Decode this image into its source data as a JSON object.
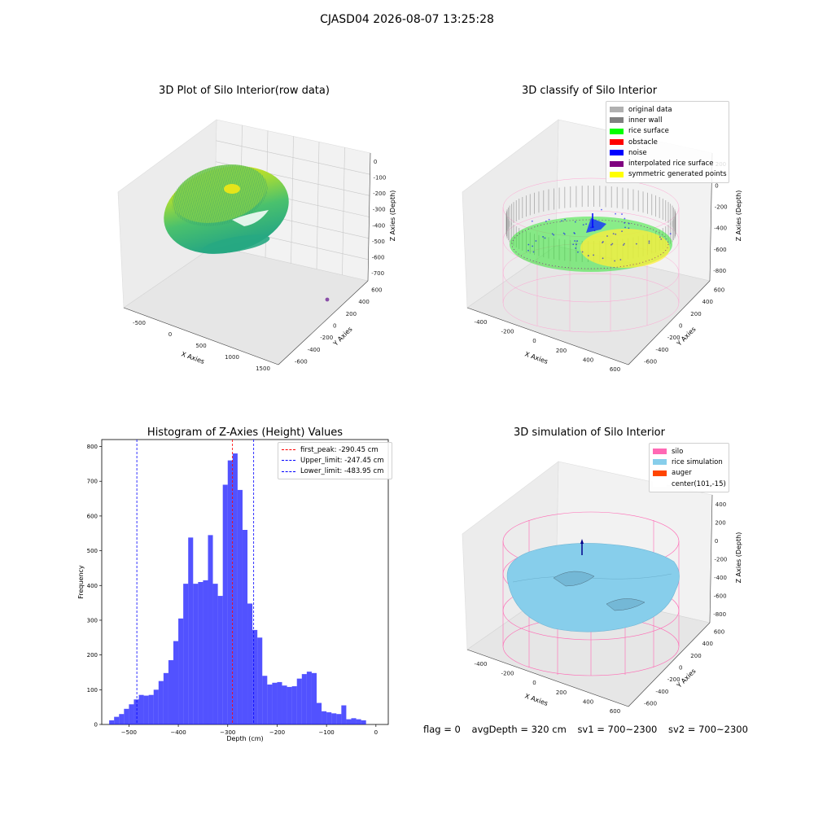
{
  "figure": {
    "suptitle": "CJASD04 2026-08-07 13:25:28"
  },
  "panels": {
    "raw": {
      "title": "3D Plot of Silo Interior(row data)",
      "xlabel": "X Axies",
      "ylabel": "Y Axies",
      "zlabel": "Z Axies (Depth)",
      "xticks": [
        "-500",
        "0",
        "500",
        "1000",
        "1500"
      ],
      "yticks": [
        "600",
        "400",
        "200",
        "0",
        "-200",
        "-400",
        "-600"
      ],
      "zticks": [
        "0",
        "-100",
        "-200",
        "-300",
        "-400",
        "-500",
        "-600",
        "-700"
      ]
    },
    "classify": {
      "title": "3D classify of Silo Interior",
      "xlabel": "X Axies",
      "ylabel": "Y Axies",
      "zlabel": "Z Axies (Depth)",
      "xticks": [
        "-400",
        "-200",
        "0",
        "200",
        "400",
        "600"
      ],
      "yticks": [
        "600",
        "400",
        "200",
        "0",
        "-200",
        "-400",
        "-600"
      ],
      "zticks": [
        "200",
        "0",
        "-200",
        "-400",
        "-600",
        "-800"
      ],
      "legend": [
        {
          "label": "original data",
          "color": "#b0b0b0"
        },
        {
          "label": "inner wall",
          "color": "#808080"
        },
        {
          "label": "rice surface",
          "color": "#00ff00"
        },
        {
          "label": "obstacle",
          "color": "#ff0000"
        },
        {
          "label": "noise",
          "color": "#0000ff"
        },
        {
          "label": "interpolated rice surface",
          "color": "#800080"
        },
        {
          "label": "symmetric generated points",
          "color": "#ffff00"
        }
      ]
    },
    "simulation": {
      "title": "3D simulation of Silo Interior",
      "xlabel": "X Axies",
      "ylabel": "Y Axies",
      "zlabel": "Z Axies (Depth)",
      "xticks": [
        "-400",
        "-200",
        "0",
        "200",
        "400",
        "600"
      ],
      "yticks": [
        "600",
        "400",
        "200",
        "0",
        "-200",
        "-400",
        "-600"
      ],
      "zticks": [
        "400",
        "200",
        "0",
        "-200",
        "-400",
        "-600",
        "-800"
      ],
      "legend": [
        {
          "label": "silo",
          "color": "#ff69b4"
        },
        {
          "label": "rice simulation",
          "color": "#87ceeb"
        },
        {
          "label": "auger",
          "color": "#ff4500"
        },
        {
          "label": "center(101,-15)",
          "color": "#ffffff"
        }
      ]
    }
  },
  "footer": {
    "flag": "flag = 0",
    "avg_depth": "avgDepth = 320 cm",
    "sv1": "sv1 = 700~2300",
    "sv2": "sv2 = 700~2300"
  },
  "chart_data": [
    {
      "type": "scatter",
      "title": "3D Plot of Silo Interior(row data)",
      "xlabel": "X Axies",
      "ylabel": "Y Axies",
      "zlabel": "Z Axies (Depth)",
      "xlim": [
        -650,
        1550
      ],
      "ylim": [
        -650,
        650
      ],
      "zlim": [
        -720,
        20
      ]
    },
    {
      "type": "scatter",
      "title": "3D classify of Silo Interior",
      "xlabel": "X Axies",
      "ylabel": "Y Axies",
      "zlabel": "Z Axies (Depth)",
      "series": [
        {
          "name": "original data"
        },
        {
          "name": "inner wall"
        },
        {
          "name": "rice surface"
        },
        {
          "name": "obstacle"
        },
        {
          "name": "noise"
        },
        {
          "name": "interpolated rice surface"
        },
        {
          "name": "symmetric generated points"
        }
      ]
    },
    {
      "type": "bar",
      "title": "Histogram of Z-Axies (Height) Values",
      "xlabel": "Depth (cm)",
      "ylabel": "Frequency",
      "xlim": [
        -555,
        25
      ],
      "ylim": [
        0,
        820
      ],
      "xticks": [
        -500,
        -400,
        -300,
        -200,
        -100,
        0
      ],
      "yticks": [
        0,
        100,
        200,
        300,
        400,
        500,
        600,
        700,
        800
      ],
      "bin_start": -540,
      "bin_width": 10,
      "values": [
        12,
        22,
        30,
        45,
        58,
        72,
        85,
        83,
        85,
        100,
        125,
        148,
        185,
        240,
        305,
        405,
        538,
        405,
        410,
        415,
        545,
        405,
        370,
        690,
        760,
        780,
        675,
        560,
        348,
        272,
        250,
        140,
        115,
        120,
        122,
        112,
        108,
        110,
        132,
        145,
        152,
        148,
        62,
        38,
        35,
        32,
        30,
        55,
        15,
        18,
        15,
        12
      ],
      "lines": [
        {
          "label": "first_peak: -290.45 cm",
          "x": -290.45,
          "color": "#ff0000"
        },
        {
          "label": "Upper_limit: -247.45 cm",
          "x": -247.45,
          "color": "#0000ff"
        },
        {
          "label": "Lower_limit: -483.95 cm",
          "x": -483.95,
          "color": "#0000ff"
        }
      ]
    },
    {
      "type": "area",
      "title": "3D simulation of Silo Interior",
      "xlabel": "X Axies",
      "ylabel": "Y Axies",
      "zlabel": "Z Axies (Depth)",
      "series": [
        {
          "name": "silo"
        },
        {
          "name": "rice simulation"
        },
        {
          "name": "auger"
        },
        {
          "name": "center(101,-15)"
        }
      ]
    }
  ]
}
